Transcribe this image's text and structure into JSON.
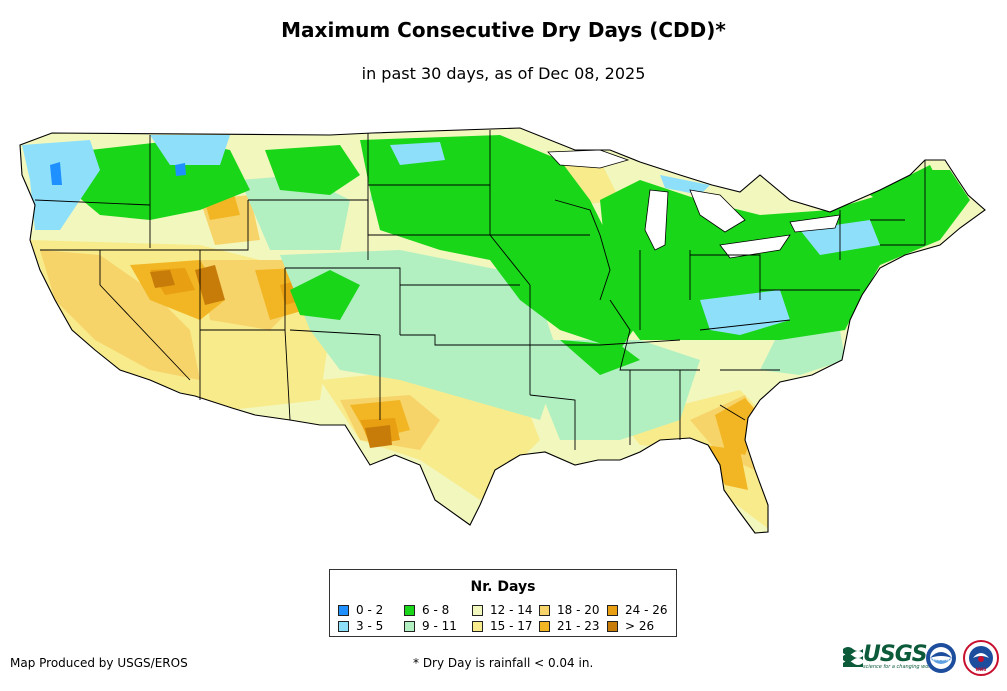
{
  "title": "Maximum Consecutive Dry Days (CDD)*",
  "subtitle": "in past 30 days, as of Dec 08, 2025",
  "legend": {
    "title": "Nr. Days",
    "items": [
      {
        "label": "0 - 2",
        "color": "#1e90ff"
      },
      {
        "label": "3 - 5",
        "color": "#8ee0fa"
      },
      {
        "label": "6 - 8",
        "color": "#19d619"
      },
      {
        "label": "9 - 11",
        "color": "#b2f0c2"
      },
      {
        "label": "12 - 14",
        "color": "#f2f7be"
      },
      {
        "label": "15 - 17",
        "color": "#f8eb8c"
      },
      {
        "label": "18 - 20",
        "color": "#f6d46a"
      },
      {
        "label": "21 - 23",
        "color": "#f2b624"
      },
      {
        "label": "24 - 26",
        "color": "#e8a012"
      },
      {
        "label": "> 26",
        "color": "#c77c0a"
      }
    ]
  },
  "footer": {
    "credit": "Map Produced by USGS/EROS",
    "note": "* Dry Day is rainfall < 0.04 in."
  },
  "logos": {
    "usgs": "USGS",
    "usgs_tagline": "science for a changing world",
    "noaa": "noaa",
    "nws": "NWS"
  }
}
